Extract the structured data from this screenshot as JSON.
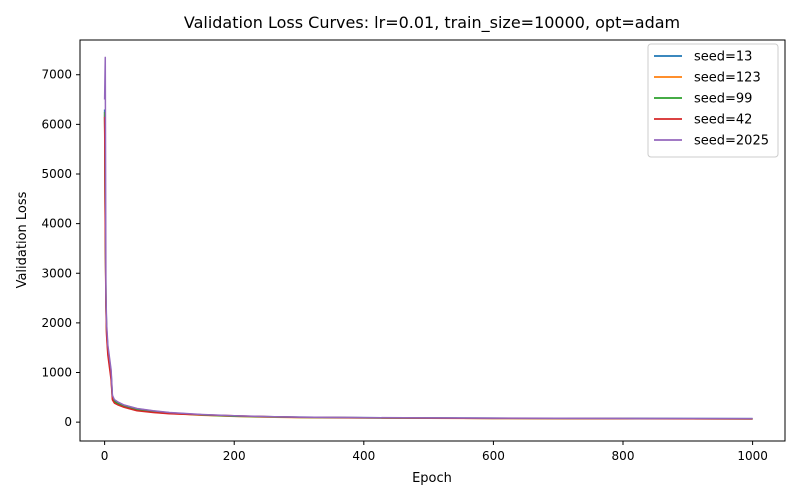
{
  "chart_data": {
    "type": "line",
    "title": "Validation Loss Curves: lr=0.01, train_size=10000, opt=adam",
    "xlabel": "Epoch",
    "ylabel": "Validation Loss",
    "xlim": [
      -38,
      1050
    ],
    "ylim": [
      -380,
      7700
    ],
    "xticks": [
      0,
      200,
      400,
      600,
      800,
      1000
    ],
    "yticks": [
      0,
      1000,
      2000,
      3000,
      4000,
      5000,
      6000,
      7000
    ],
    "grid": false,
    "legend_position": "top-right",
    "series": [
      {
        "name": "seed=13",
        "color": "#1f77b4",
        "x": [
          0,
          1,
          2,
          3,
          5,
          8,
          10,
          12,
          15,
          20,
          30,
          50,
          75,
          100,
          150,
          200,
          250,
          300,
          400,
          500,
          600,
          700,
          800,
          900,
          1000
        ],
        "y": [
          6300,
          4200,
          2500,
          1900,
          1500,
          1200,
          1000,
          520,
          440,
          400,
          340,
          270,
          225,
          190,
          150,
          125,
          110,
          100,
          90,
          85,
          80,
          78,
          76,
          74,
          72
        ]
      },
      {
        "name": "seed=123",
        "color": "#ff7f0e",
        "x": [
          0,
          1,
          2,
          3,
          5,
          8,
          10,
          12,
          15,
          20,
          30,
          50,
          75,
          100,
          150,
          200,
          250,
          300,
          400,
          500,
          600,
          700,
          800,
          900,
          1000
        ],
        "y": [
          6200,
          4000,
          2400,
          1800,
          1400,
          1100,
          900,
          470,
          400,
          360,
          310,
          240,
          200,
          175,
          140,
          115,
          100,
          92,
          84,
          78,
          74,
          71,
          68,
          66,
          64
        ]
      },
      {
        "name": "seed=99",
        "color": "#2ca02c",
        "x": [
          0,
          1,
          2,
          3,
          5,
          8,
          10,
          12,
          15,
          20,
          30,
          50,
          75,
          100,
          150,
          200,
          250,
          300,
          400,
          500,
          600,
          700,
          800,
          900,
          1000
        ],
        "y": [
          6250,
          4100,
          2450,
          1850,
          1450,
          1150,
          950,
          490,
          415,
          380,
          325,
          255,
          210,
          180,
          145,
          120,
          105,
          95,
          86,
          80,
          76,
          73,
          70,
          68,
          66
        ]
      },
      {
        "name": "seed=42",
        "color": "#d62728",
        "x": [
          0,
          1,
          2,
          3,
          5,
          8,
          10,
          12,
          15,
          20,
          30,
          50,
          75,
          100,
          150,
          200,
          250,
          300,
          400,
          500,
          600,
          700,
          800,
          900,
          1000
        ],
        "y": [
          6150,
          3900,
          2350,
          1750,
          1350,
          1050,
          850,
          450,
          385,
          350,
          300,
          230,
          195,
          170,
          150,
          130,
          110,
          98,
          88,
          82,
          77,
          74,
          71,
          69,
          67
        ]
      },
      {
        "name": "seed=2025",
        "color": "#9467bd",
        "x": [
          0,
          1,
          2,
          3,
          5,
          8,
          10,
          12,
          15,
          20,
          30,
          50,
          75,
          100,
          150,
          200,
          250,
          300,
          400,
          500,
          600,
          700,
          800,
          900,
          1000
        ],
        "y": [
          6500,
          7350,
          2600,
          2000,
          1550,
          1250,
          1050,
          540,
          455,
          410,
          345,
          275,
          230,
          195,
          155,
          128,
          112,
          102,
          91,
          86,
          81,
          78,
          75,
          73,
          71
        ]
      }
    ]
  }
}
